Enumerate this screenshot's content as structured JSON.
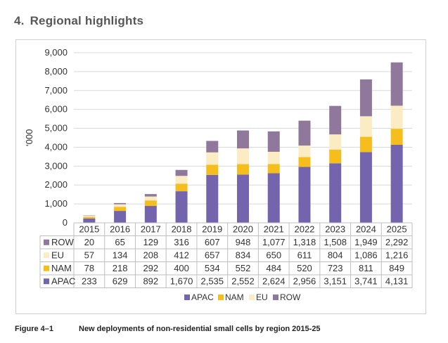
{
  "page": {
    "section_number": "4.",
    "section_title": "Regional highlights",
    "figure_label": "Figure 4–1",
    "figure_caption": "New deployments of non-residential small cells by region 2015-25"
  },
  "chart_data": {
    "type": "bar",
    "stacked": true,
    "title": "",
    "xlabel": "",
    "ylabel": "‘000",
    "ylim": [
      0,
      9000
    ],
    "yticks": [
      "0",
      "1,000",
      "2,000",
      "3,000",
      "4,000",
      "5,000",
      "6,000",
      "7,000",
      "8,000",
      "9,000"
    ],
    "grid": true,
    "legend_position": "bottom",
    "categories": [
      "2015",
      "2016",
      "2017",
      "2018",
      "2019",
      "2020",
      "2021",
      "2022",
      "2023",
      "2024",
      "2025"
    ],
    "series": [
      {
        "name": "APAC",
        "color": "#7464ae",
        "values": [
          233,
          629,
          892,
          1670,
          2535,
          2552,
          2624,
          2956,
          3151,
          3741,
          4131
        ],
        "labels": [
          "233",
          "629",
          "892",
          "1,670",
          "2,535",
          "2,552",
          "2,624",
          "2,956",
          "3,151",
          "3,741",
          "4,131"
        ]
      },
      {
        "name": "NAM",
        "color": "#f5be1c",
        "values": [
          78,
          218,
          292,
          400,
          534,
          552,
          484,
          520,
          723,
          811,
          849
        ],
        "labels": [
          "78",
          "218",
          "292",
          "400",
          "534",
          "552",
          "484",
          "520",
          "723",
          "811",
          "849"
        ]
      },
      {
        "name": "EU",
        "color": "#fbecc3",
        "values": [
          57,
          134,
          208,
          412,
          657,
          834,
          650,
          611,
          804,
          1086,
          1216
        ],
        "labels": [
          "57",
          "134",
          "208",
          "412",
          "657",
          "834",
          "650",
          "611",
          "804",
          "1,086",
          "1,216"
        ]
      },
      {
        "name": "ROW",
        "color": "#8f789b",
        "values": [
          20,
          65,
          129,
          316,
          607,
          948,
          1077,
          1318,
          1508,
          1949,
          2292
        ],
        "labels": [
          "20",
          "65",
          "129",
          "316",
          "607",
          "948",
          "1,077",
          "1,318",
          "1,508",
          "1,949",
          "2,292"
        ]
      }
    ],
    "table_row_order": [
      "ROW",
      "EU",
      "NAM",
      "APAC"
    ],
    "legend_order": [
      "APAC",
      "NAM",
      "EU",
      "ROW"
    ]
  }
}
